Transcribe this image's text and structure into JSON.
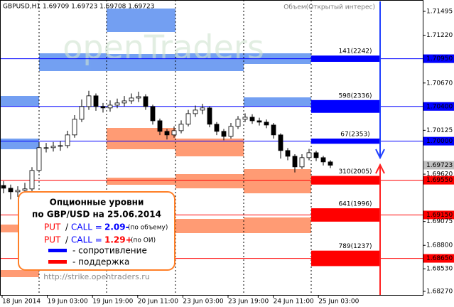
{
  "header": {
    "symbol": "GBPUSD,H1 1.69709 1.69723 1.69708 1.69723",
    "indicator": "Объем(Открытый интерес)",
    "watermark": "openTraders"
  },
  "info_box": {
    "title": "Опционные уровни",
    "subtitle": "по GBP/USD на 25.06.2014",
    "put": "PUT",
    "slash": "/",
    "call": "CALL =",
    "ratio1": "2.09-",
    "note1": "(по объему)",
    "ratio2": "1.29+",
    "note2": "(по ОИ)",
    "resistance": "- сопротивление",
    "support": "- поддержка",
    "url": "http://strike.opentraders.ru"
  },
  "chart_data": {
    "type": "candlestick",
    "open": [
      1.6949,
      1.69458,
      1.69417,
      1.69434,
      1.6945,
      1.69663,
      1.69925,
      1.69925,
      1.69941,
      1.69949,
      1.70072,
      1.70252,
      1.70399,
      1.70522,
      1.70399,
      1.70383,
      1.70415,
      1.7044,
      1.70464,
      1.70497,
      1.70513,
      1.70399,
      1.70235,
      1.70113,
      1.70072,
      1.70121,
      1.70195,
      1.70317,
      1.70358,
      1.70383,
      1.70195,
      1.70113,
      1.70055,
      1.7017,
      1.70252,
      1.70276,
      1.70235,
      1.70219,
      1.70186,
      1.70072,
      1.69892,
      1.69826,
      1.69704,
      1.6981,
      1.69867,
      1.6981,
      1.69761
    ],
    "high": [
      1.6954,
      1.695,
      1.6948,
      1.6952,
      1.697,
      1.6999,
      1.6998,
      1.6999,
      1.7,
      1.7012,
      1.703,
      1.7048,
      1.7058,
      1.7055,
      1.7044,
      1.7047,
      1.7049,
      1.7052,
      1.7055,
      1.7057,
      1.7054,
      1.7042,
      1.7026,
      1.7014,
      1.7017,
      1.7024,
      1.7036,
      1.7041,
      1.7043,
      1.704,
      1.7022,
      1.7014,
      1.7021,
      1.7029,
      1.7032,
      1.7031,
      1.7027,
      1.7025,
      1.7021,
      1.7009,
      1.6992,
      1.6985,
      1.6985,
      1.6991,
      1.6989,
      1.6983,
      1.6978
    ],
    "low": [
      1.694,
      1.6933,
      1.6936,
      1.6938,
      1.6942,
      1.6964,
      1.6987,
      1.6988,
      1.6989,
      1.6992,
      1.7004,
      1.7022,
      1.7036,
      1.7035,
      1.7033,
      1.7034,
      1.7038,
      1.704,
      1.7043,
      1.7045,
      1.7036,
      1.7019,
      1.7007,
      1.7002,
      1.7004,
      1.7009,
      1.7017,
      1.7028,
      1.7031,
      1.7016,
      1.7007,
      1.7001,
      1.7003,
      1.7014,
      1.7022,
      1.702,
      1.7018,
      1.7015,
      1.7003,
      1.698,
      1.6978,
      1.6964,
      1.6968,
      1.6978,
      1.6977,
      1.6972,
      1.6969
    ],
    "close": [
      1.69458,
      1.69417,
      1.69434,
      1.6945,
      1.69663,
      1.69925,
      1.69925,
      1.69941,
      1.69949,
      1.70072,
      1.70252,
      1.70399,
      1.70522,
      1.70399,
      1.70383,
      1.70415,
      1.7044,
      1.70464,
      1.70497,
      1.70513,
      1.70399,
      1.70235,
      1.70113,
      1.70072,
      1.70121,
      1.70195,
      1.70317,
      1.70358,
      1.70383,
      1.70195,
      1.70113,
      1.70055,
      1.7017,
      1.70252,
      1.70276,
      1.70235,
      1.70219,
      1.70186,
      1.70072,
      1.69892,
      1.69826,
      1.69704,
      1.6981,
      1.69867,
      1.6981,
      1.69761,
      1.69723
    ],
    "x_labels": [
      "18 Jun 2014",
      "19 Jun 03:00",
      "19 Jun 19:00",
      "20 Jun 11:00",
      "23 Jun 03:00",
      "23 Jun 19:00",
      "24 Jun 11:00",
      "25 Jun 03:00"
    ],
    "ylim": [
      1.68229,
      1.71626
    ],
    "yticks": [
      1.71495,
      {
        "value": 1.7122,
        "label": "1.71220"
      },
      {
        "value": 1.7095,
        "label": "1.70950"
      },
      {
        "value": 1.7067,
        "label": "1.70670"
      },
      {
        "value": 1.704,
        "label": "1.70400"
      },
      1.70125,
      {
        "value": 1.7,
        "label": "1.70000"
      },
      1.69723,
      {
        "value": 1.6962,
        "label": "1.69620"
      },
      {
        "value": 1.6955,
        "label": "1.69550"
      },
      {
        "value": 1.6915,
        "label": "1.69150"
      },
      1.69075,
      {
        "value": 1.688,
        "label": "1.68800"
      },
      {
        "value": 1.6865,
        "label": "1.68650"
      },
      {
        "value": 1.6853,
        "label": "1.68530"
      },
      {
        "value": 1.6827,
        "label": "1.68270"
      }
    ],
    "option_levels": [
      {
        "price": 1.7095,
        "volume": 141,
        "label": "141(2242)",
        "color": "#0000ff"
      },
      {
        "price": 1.704,
        "volume": 598,
        "label": "598(2336)",
        "color": "#0000ff"
      },
      {
        "price": 1.7,
        "volume": 67,
        "label": "67(2353)",
        "color": "#0000ff"
      },
      {
        "price": 1.6955,
        "volume": 310,
        "label": "310(2005)",
        "color": "#ff0000"
      },
      {
        "price": 1.6915,
        "volume": 641,
        "label": "641(1996)",
        "color": "#ff0000"
      },
      {
        "price": 1.6865,
        "volume": 789,
        "label": "789(1237)",
        "color": "#ff0000"
      }
    ]
  }
}
